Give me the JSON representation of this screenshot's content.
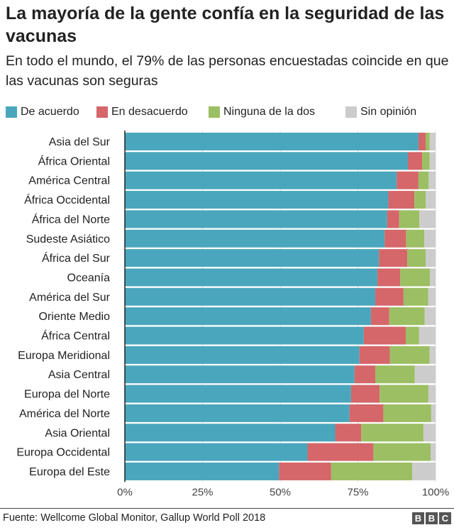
{
  "header": {
    "title": "La mayoría de la gente confía en la seguridad de las vacunas",
    "subtitle": "En todo el mundo, el 79% de las personas encuestadas coincide en que las vacunas son seguras"
  },
  "footer": {
    "source": "Fuente: Wellcome Global Monitor, Gallup World Poll 2018",
    "logo": "BBC"
  },
  "chart_data": {
    "type": "bar",
    "orientation": "horizontal",
    "stacked": true,
    "xlim": [
      0,
      100
    ],
    "x_ticks": [
      "0%",
      "25%",
      "50%",
      "75%",
      "100%"
    ],
    "grid": true,
    "legend_placement": "top",
    "categories": [
      "Asia del Sur",
      "África Oriental",
      "América Central",
      "África Occidental",
      "África del Norte",
      "Sudeste Asiático",
      "África del Sur",
      "Oceanía",
      "América del Sur",
      "Oriente Medio",
      "África Central",
      "Europa Meridional",
      "Asia Central",
      "Europa del Norte",
      "América del Norte",
      "Asia Oriental",
      "Europa Occidental",
      "Europa del Este"
    ],
    "series": [
      {
        "name": "De acuerdo",
        "color": "#4aa6bd",
        "values": [
          94.5,
          91.1,
          87.5,
          84.8,
          84.4,
          83.6,
          81.8,
          81.3,
          80.6,
          79.2,
          76.9,
          75.5,
          73.9,
          72.8,
          72.3,
          67.7,
          58.8,
          49.6
        ]
      },
      {
        "name": "En desacuerdo",
        "color": "#d5666a",
        "values": [
          2.3,
          4.6,
          7.0,
          8.4,
          3.9,
          6.9,
          9.1,
          7.3,
          9.1,
          5.9,
          13.5,
          9.8,
          6.7,
          9.2,
          10.9,
          8.4,
          21.2,
          16.8
        ]
      },
      {
        "name": "Ninguna de la dos",
        "color": "#9bbf62",
        "values": [
          1.3,
          2.4,
          3.3,
          3.6,
          6.5,
          5.9,
          5.9,
          9.6,
          7.9,
          11.4,
          4.3,
          12.8,
          12.7,
          15.7,
          15.4,
          20.0,
          18.4,
          26.1
        ]
      },
      {
        "name": "Sin opinión",
        "color": "#cccccc",
        "values": [
          1.9,
          1.9,
          2.2,
          3.2,
          5.2,
          3.6,
          3.2,
          1.8,
          2.4,
          3.5,
          5.3,
          1.9,
          6.7,
          2.3,
          1.4,
          3.9,
          1.6,
          7.5
        ]
      }
    ]
  }
}
